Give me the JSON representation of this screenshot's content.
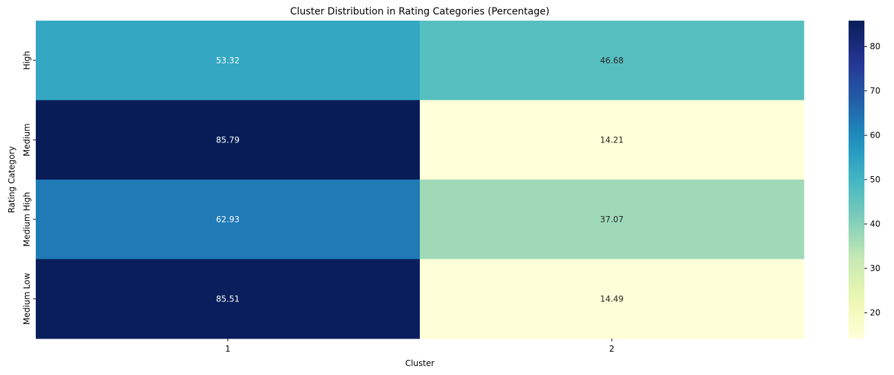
{
  "chart_data": {
    "type": "heatmap",
    "title": "Cluster Distribution in Rating Categories (Percentage)",
    "xlabel": "Cluster",
    "ylabel": "Rating Category",
    "x_categories": [
      "1",
      "2"
    ],
    "y_categories": [
      "High",
      "Medium",
      "Medium High",
      "Medium Low"
    ],
    "values": [
      [
        53.32,
        46.68
      ],
      [
        85.79,
        14.21
      ],
      [
        62.93,
        37.07
      ],
      [
        85.51,
        14.49
      ]
    ],
    "value_labels": [
      [
        "53.32",
        "46.68"
      ],
      [
        "85.79",
        "14.21"
      ],
      [
        "62.93",
        "37.07"
      ],
      [
        "85.51",
        "14.49"
      ]
    ],
    "colormap": "YlGnBu",
    "color_range": [
      14.21,
      85.79
    ],
    "colorbar_ticks": [
      "20",
      "30",
      "40",
      "50",
      "60",
      "70",
      "80"
    ],
    "colorbar_tick_values": [
      20,
      30,
      40,
      50,
      60,
      70,
      80
    ]
  }
}
